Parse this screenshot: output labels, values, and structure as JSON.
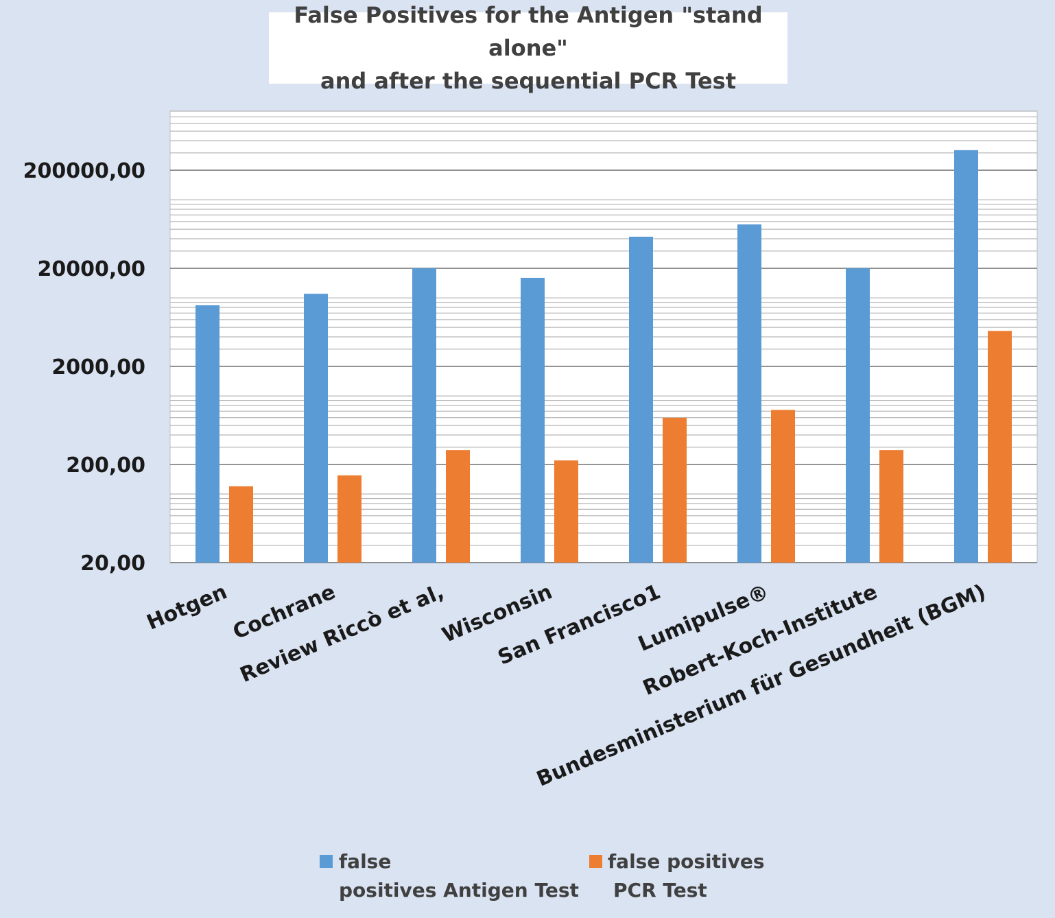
{
  "chart_data": {
    "type": "bar",
    "title_line1": "False Positives for the Antigen \"stand alone\"",
    "title_line2": "and after the sequential PCR Test",
    "categories": [
      "Hotgen",
      "Cochrane",
      "Review Riccò et al,",
      "Wisconsin",
      "San Francisco1",
      "Lumipulse®",
      "Robert-Koch-Institute",
      "Bundesministerium für Gesundheit (BGM)"
    ],
    "series": [
      {
        "name": "false positives Antigen Test",
        "legend_line1": "false",
        "legend_line2": "positives Antigen Test",
        "color": "#5b9bd5",
        "values": [
          8400,
          11000,
          20000,
          16000,
          42000,
          56000,
          20000,
          320000
        ]
      },
      {
        "name": "false positives PCR Test",
        "legend_line1": "false positives",
        "legend_line2": "PCR Test",
        "color": "#ed7d31",
        "values": [
          120,
          155,
          280,
          220,
          600,
          720,
          280,
          4600
        ]
      }
    ],
    "y_scale": "log",
    "ylim": [
      20,
      800000
    ],
    "y_ticks": [
      20,
      200,
      2000,
      20000,
      200000
    ],
    "y_tick_labels": [
      "20,00",
      "200,00",
      "2000,00",
      "20000,00",
      "200000,00"
    ],
    "grid": true,
    "legend_position": "bottom"
  }
}
